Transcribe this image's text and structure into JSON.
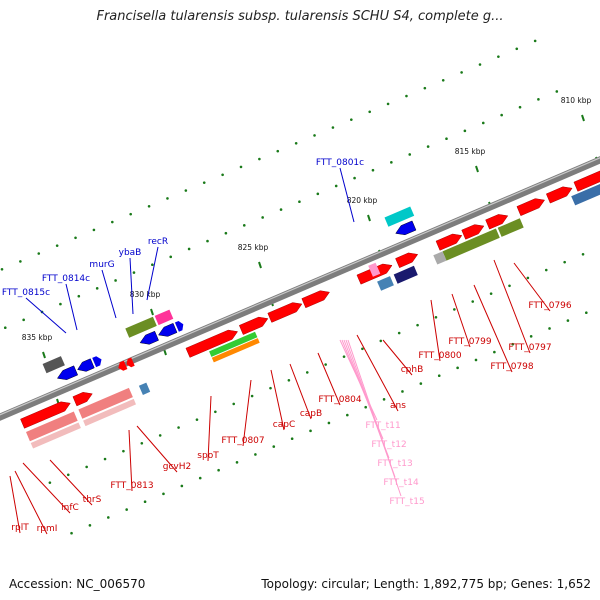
{
  "title": "Francisella tularensis subsp. tularensis SCHU S4, complete g...",
  "footer": {
    "accession": "Accession: NC_006570",
    "summary": "Topology: circular; Length: 1,892,775 bp; Genes: 1,652"
  },
  "scale": {
    "ticks": [
      {
        "label": "810 kbp"
      },
      {
        "label": "815 kbp"
      },
      {
        "label": "820 kbp"
      },
      {
        "label": "825 kbp"
      },
      {
        "label": "830 kbp"
      },
      {
        "label": "835 kbp"
      }
    ]
  },
  "genes_top": [
    {
      "name": "FTT_0815c",
      "color": "#0000cc"
    },
    {
      "name": "FTT_0814c",
      "color": "#0000cc"
    },
    {
      "name": "murG",
      "color": "#0000cc"
    },
    {
      "name": "ybaB",
      "color": "#0000cc"
    },
    {
      "name": "recR",
      "color": "#0000cc"
    },
    {
      "name": "FTT_0801c",
      "color": "#0000cc"
    }
  ],
  "genes_bottom": [
    {
      "name": "FTT_0796",
      "color": "#cc0000"
    },
    {
      "name": "FTT_0797",
      "color": "#cc0000"
    },
    {
      "name": "FTT_0798",
      "color": "#cc0000"
    },
    {
      "name": "FTT_0799",
      "color": "#cc0000"
    },
    {
      "name": "FTT_0800",
      "color": "#cc0000"
    },
    {
      "name": "cphB",
      "color": "#cc0000"
    },
    {
      "name": "ans",
      "color": "#cc0000"
    },
    {
      "name": "FTT_0804",
      "color": "#cc0000"
    },
    {
      "name": "capB",
      "color": "#cc0000"
    },
    {
      "name": "capC",
      "color": "#cc0000"
    },
    {
      "name": "FTT_0807",
      "color": "#cc0000"
    },
    {
      "name": "spoT",
      "color": "#cc0000"
    },
    {
      "name": "gcvH2",
      "color": "#cc0000"
    },
    {
      "name": "FTT_0813",
      "color": "#cc0000"
    },
    {
      "name": "thrS",
      "color": "#cc0000"
    },
    {
      "name": "infC",
      "color": "#cc0000"
    },
    {
      "name": "rpmI",
      "color": "#cc0000"
    },
    {
      "name": "rplT",
      "color": "#cc0000"
    }
  ],
  "trna": [
    {
      "name": "FTT_t11",
      "color": "#ff99cc"
    },
    {
      "name": "FTT_t12",
      "color": "#ff99cc"
    },
    {
      "name": "FTT_t13",
      "color": "#ff99cc"
    },
    {
      "name": "FTT_t14",
      "color": "#ff99cc"
    },
    {
      "name": "FTT_t15",
      "color": "#ff99cc"
    }
  ],
  "colors": {
    "forward_cds": "#ff0000",
    "reverse_cds": "#0000ee",
    "backbone": "#888888",
    "tick": "#1a7a1a"
  }
}
